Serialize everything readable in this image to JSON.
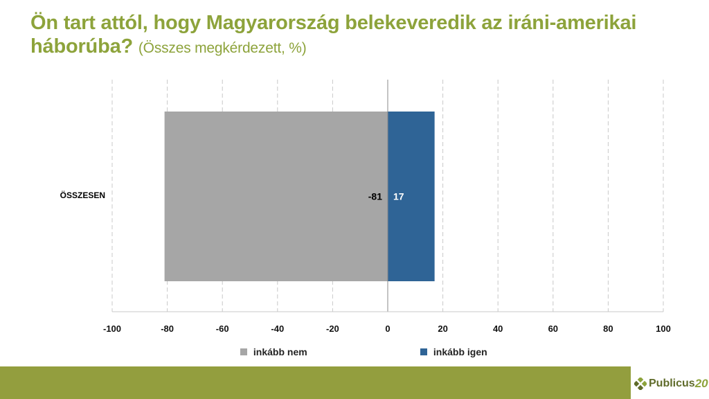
{
  "title": {
    "main": "Ön tart attól, hogy Magyarország belekeveredik az iráni-amerikai háborúba?",
    "subtitle": "(Összes megkérdezett, %)"
  },
  "chart_data": {
    "type": "bar",
    "orientation": "horizontal",
    "stacked": "diverging",
    "categories": [
      "ÖSSZESEN"
    ],
    "series": [
      {
        "name": "inkább nem",
        "values": [
          -81
        ],
        "color": "#a6a6a6"
      },
      {
        "name": "inkább igen",
        "values": [
          17
        ],
        "color": "#2f6496"
      }
    ],
    "xlim": [
      -100,
      100
    ],
    "xticks": [
      "-100",
      "-80",
      "-60",
      "-40",
      "-20",
      "0",
      "20",
      "40",
      "60",
      "80",
      "100"
    ],
    "grid": "vertical dashed",
    "legend": "bottom"
  },
  "legend": {
    "items": [
      {
        "label": "inkább nem",
        "color": "#a6a6a6"
      },
      {
        "label": "inkább igen",
        "color": "#2f6496"
      }
    ]
  },
  "footer": {
    "brand": "Publicus",
    "brand_number": "20",
    "bar_color": "#939e3e"
  }
}
